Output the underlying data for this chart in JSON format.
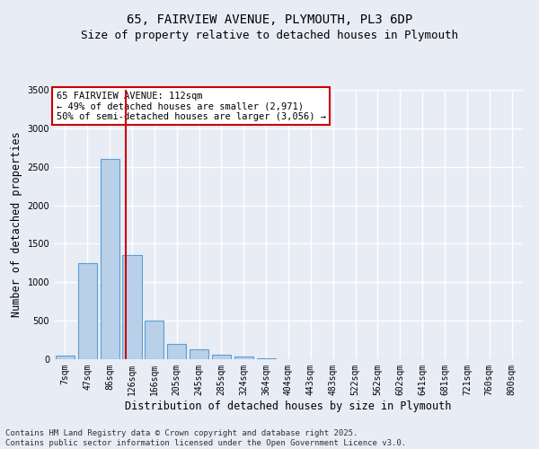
{
  "title_line1": "65, FAIRVIEW AVENUE, PLYMOUTH, PL3 6DP",
  "title_line2": "Size of property relative to detached houses in Plymouth",
  "xlabel": "Distribution of detached houses by size in Plymouth",
  "ylabel": "Number of detached properties",
  "categories": [
    "7sqm",
    "47sqm",
    "86sqm",
    "126sqm",
    "166sqm",
    "205sqm",
    "245sqm",
    "285sqm",
    "324sqm",
    "364sqm",
    "404sqm",
    "443sqm",
    "483sqm",
    "522sqm",
    "562sqm",
    "602sqm",
    "641sqm",
    "681sqm",
    "721sqm",
    "760sqm",
    "800sqm"
  ],
  "values": [
    50,
    1250,
    2600,
    1350,
    500,
    200,
    130,
    60,
    30,
    10,
    5,
    2,
    1,
    0,
    0,
    0,
    0,
    0,
    0,
    0,
    0
  ],
  "bar_color": "#b8d0e8",
  "bar_edge_color": "#5a9fd4",
  "bar_edge_width": 0.8,
  "vline_x": 2.7,
  "vline_color": "#cc0000",
  "annotation_box_text": "65 FAIRVIEW AVENUE: 112sqm\n← 49% of detached houses are smaller (2,971)\n50% of semi-detached houses are larger (3,056) →",
  "annotation_box_color": "#cc0000",
  "annotation_box_bg": "#ffffff",
  "ylim": [
    0,
    3500
  ],
  "yticks": [
    0,
    500,
    1000,
    1500,
    2000,
    2500,
    3000,
    3500
  ],
  "bg_color": "#e8ecf5",
  "plot_bg_color": "#e8ecf5",
  "footer_text": "Contains HM Land Registry data © Crown copyright and database right 2025.\nContains public sector information licensed under the Open Government Licence v3.0.",
  "grid_color": "#ffffff",
  "title_fontsize": 10,
  "subtitle_fontsize": 9,
  "axis_label_fontsize": 8.5,
  "tick_fontsize": 7,
  "annotation_fontsize": 7.5,
  "footer_fontsize": 6.5
}
